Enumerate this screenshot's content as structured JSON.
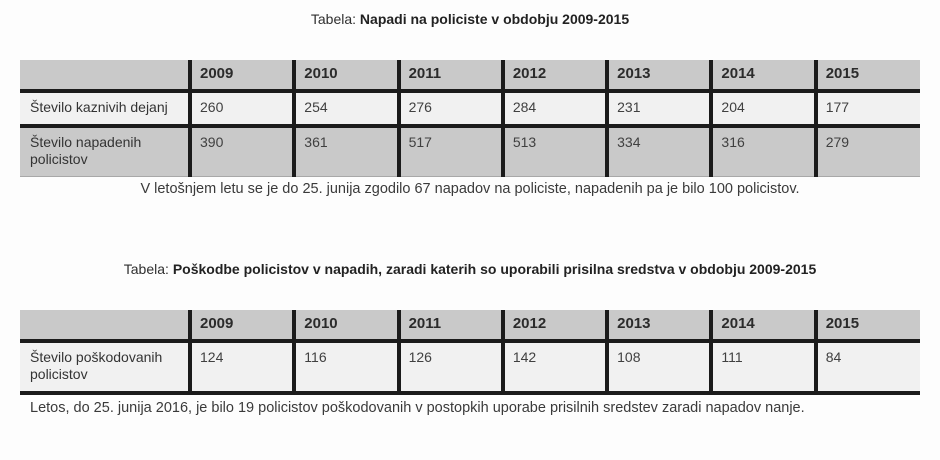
{
  "colors": {
    "header_row_bg": "#c9c9c9",
    "light_row_bg": "#f1f1f1",
    "dark_row_bg": "#c9c9c9",
    "table_border": "#1b1b1b",
    "text": "#333333",
    "page_bg": "#fdfdfd"
  },
  "tables": [
    {
      "title_prefix": "Tabela:",
      "title_bold": "Napadi na policiste v obdobju 2009-2015",
      "years": [
        "2009",
        "2010",
        "2011",
        "2012",
        "2013",
        "2014",
        "2015"
      ],
      "rows": [
        {
          "label": "Število kaznivih dejanj",
          "values": [
            "260",
            "254",
            "276",
            "284",
            "231",
            "204",
            "177"
          ]
        },
        {
          "label": "Število napadenih policistov",
          "values": [
            "390",
            "361",
            "517",
            "513",
            "334",
            "316",
            "279"
          ]
        }
      ],
      "caption": "V letošnjem letu se je do 25. junija zgodilo 67 napadov na policiste, napadenih pa je bilo 100 policistov."
    },
    {
      "title_prefix": "Tabela:",
      "title_bold": "Poškodbe policistov v napadih, zaradi katerih so uporabili prisilna sredstva v obdobju 2009-2015",
      "years": [
        "2009",
        "2010",
        "2011",
        "2012",
        "2013",
        "2014",
        "2015"
      ],
      "rows": [
        {
          "label": "Število poškodovanih policistov",
          "values": [
            "124",
            "116",
            "126",
            "142",
            "108",
            "111",
            "84"
          ]
        }
      ],
      "caption": "Letos, do 25. junija 2016, je bilo 19 policistov poškodovanih v postopkih uporabe prisilnih sredstev zaradi napadov nanje."
    }
  ]
}
